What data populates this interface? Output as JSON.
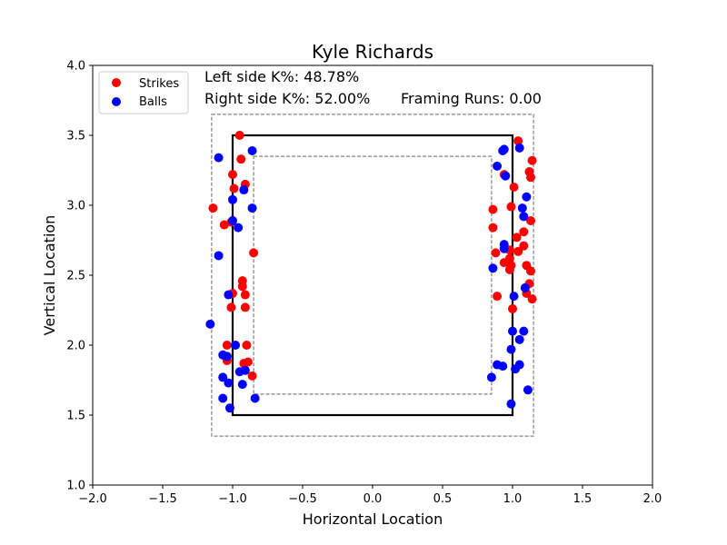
{
  "chart_data": {
    "type": "scatter",
    "title": "Kyle Richards",
    "xlabel": "Horizontal Location",
    "ylabel": "Vertical Location",
    "xlim": [
      -2.0,
      2.0
    ],
    "ylim": [
      1.0,
      4.0
    ],
    "xticks": [
      -2.0,
      -1.5,
      -1.0,
      -0.5,
      0.0,
      0.5,
      1.0,
      1.5,
      2.0
    ],
    "yticks": [
      1.0,
      1.5,
      2.0,
      2.5,
      3.0,
      3.5,
      4.0
    ],
    "xtick_labels": [
      "−2.0",
      "−1.5",
      "−1.0",
      "−0.5",
      "0.0",
      "0.5",
      "1.0",
      "1.5",
      "2.0"
    ],
    "ytick_labels": [
      "1.0",
      "1.5",
      "2.0",
      "2.5",
      "3.0",
      "3.5",
      "4.0"
    ],
    "grid": false,
    "legend_position": "top-left",
    "annotations": {
      "left_k": "Left side K%: 48.78%",
      "right_k": "Right side K%: 52.00%",
      "framing": "Framing Runs: 0.00"
    },
    "zones": {
      "strike_zone": {
        "x": [
          -1.0,
          1.0
        ],
        "y": [
          1.5,
          3.5
        ],
        "color": "#000000",
        "style": "solid"
      },
      "outer_zone": {
        "x": [
          -1.15,
          1.15
        ],
        "y": [
          1.35,
          3.65
        ],
        "color": "#808080",
        "style": "dashed"
      },
      "inner_zone": {
        "x": [
          -0.85,
          0.85
        ],
        "y": [
          1.65,
          3.35
        ],
        "color": "#808080",
        "style": "dashed"
      }
    },
    "series": [
      {
        "name": "Strikes",
        "color": "#ff0000",
        "points": [
          [
            -0.95,
            3.5
          ],
          [
            -0.94,
            3.33
          ],
          [
            -1.0,
            3.22
          ],
          [
            -0.91,
            3.15
          ],
          [
            -0.99,
            3.12
          ],
          [
            -1.14,
            2.98
          ],
          [
            -1.01,
            2.88
          ],
          [
            -1.06,
            2.86
          ],
          [
            -0.85,
            2.66
          ],
          [
            -0.93,
            2.46
          ],
          [
            -0.93,
            2.42
          ],
          [
            -0.91,
            2.36
          ],
          [
            -1.0,
            2.37
          ],
          [
            -0.91,
            2.27
          ],
          [
            -1.01,
            2.27
          ],
          [
            -1.04,
            2.0
          ],
          [
            -0.9,
            2.0
          ],
          [
            -1.04,
            1.89
          ],
          [
            -0.92,
            1.87
          ],
          [
            -0.89,
            1.88
          ],
          [
            -0.86,
            1.78
          ],
          [
            1.04,
            3.46
          ],
          [
            1.14,
            3.32
          ],
          [
            1.12,
            3.24
          ],
          [
            0.94,
            3.22
          ],
          [
            1.13,
            3.2
          ],
          [
            1.01,
            3.13
          ],
          [
            0.99,
            2.99
          ],
          [
            0.86,
            2.97
          ],
          [
            1.13,
            2.89
          ],
          [
            0.86,
            2.84
          ],
          [
            1.08,
            2.81
          ],
          [
            1.03,
            2.77
          ],
          [
            0.98,
            2.68
          ],
          [
            0.88,
            2.66
          ],
          [
            1.04,
            2.67
          ],
          [
            1.08,
            2.71
          ],
          [
            0.98,
            2.62
          ],
          [
            0.94,
            2.59
          ],
          [
            0.99,
            2.57
          ],
          [
            1.1,
            2.57
          ],
          [
            0.98,
            2.54
          ],
          [
            1.13,
            2.53
          ],
          [
            1.12,
            2.44
          ],
          [
            1.1,
            2.37
          ],
          [
            0.89,
            2.35
          ],
          [
            1.14,
            2.33
          ],
          [
            1.0,
            2.26
          ]
        ]
      },
      {
        "name": "Balls",
        "color": "#0000ff",
        "points": [
          [
            -0.86,
            3.39
          ],
          [
            -1.1,
            3.34
          ],
          [
            -0.92,
            3.11
          ],
          [
            -1.0,
            3.04
          ],
          [
            -0.86,
            2.98
          ],
          [
            -1.0,
            2.89
          ],
          [
            -0.96,
            2.84
          ],
          [
            -1.1,
            2.64
          ],
          [
            -1.03,
            2.36
          ],
          [
            -1.16,
            2.15
          ],
          [
            -0.98,
            2.0
          ],
          [
            -1.07,
            1.93
          ],
          [
            -1.04,
            1.92
          ],
          [
            -0.95,
            1.81
          ],
          [
            -0.91,
            1.82
          ],
          [
            -1.07,
            1.77
          ],
          [
            -1.03,
            1.73
          ],
          [
            -0.93,
            1.72
          ],
          [
            -1.07,
            1.62
          ],
          [
            -0.84,
            1.62
          ],
          [
            -1.02,
            1.55
          ],
          [
            0.93,
            3.39
          ],
          [
            0.94,
            3.4
          ],
          [
            1.05,
            3.41
          ],
          [
            0.89,
            3.28
          ],
          [
            0.95,
            3.21
          ],
          [
            1.1,
            3.06
          ],
          [
            1.07,
            2.98
          ],
          [
            1.08,
            2.92
          ],
          [
            0.94,
            2.72
          ],
          [
            0.94,
            2.69
          ],
          [
            0.86,
            2.55
          ],
          [
            1.09,
            2.41
          ],
          [
            1.01,
            2.35
          ],
          [
            1.0,
            2.1
          ],
          [
            1.08,
            2.1
          ],
          [
            1.05,
            2.04
          ],
          [
            0.99,
            1.97
          ],
          [
            0.89,
            1.86
          ],
          [
            0.93,
            1.85
          ],
          [
            1.05,
            1.86
          ],
          [
            1.02,
            1.83
          ],
          [
            0.85,
            1.77
          ],
          [
            1.11,
            1.68
          ],
          [
            0.99,
            1.58
          ]
        ]
      }
    ]
  }
}
